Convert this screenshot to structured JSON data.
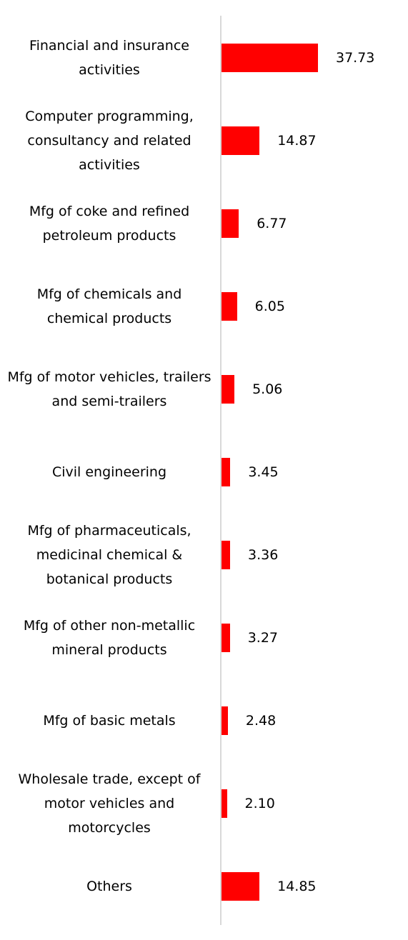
{
  "chart_data": {
    "type": "bar",
    "orientation": "horizontal",
    "categories": [
      "Financial and insurance activities",
      "Computer programming, consultancy and related activities",
      "Mfg of coke and refined petroleum products",
      "Mfg of chemicals and chemical products",
      "Mfg of motor vehicles, trailers and semi-trailers",
      "Civil engineering",
      "Mfg of pharmaceuticals, medicinal chemical & botanical products",
      "Mfg of other non-metallic mineral products",
      "Mfg of basic metals",
      "Wholesale trade, except of motor vehicles and motorcycles",
      "Others"
    ],
    "values": [
      37.73,
      14.87,
      6.77,
      6.05,
      5.06,
      3.45,
      3.36,
      3.27,
      2.48,
      2.1,
      14.85
    ],
    "value_labels": [
      "37.73",
      "14.87",
      "6.77",
      "6.05",
      "5.06",
      "3.45",
      "3.36",
      "3.27",
      "2.48",
      "2.10",
      "14.85"
    ],
    "color": "#ff0000"
  }
}
